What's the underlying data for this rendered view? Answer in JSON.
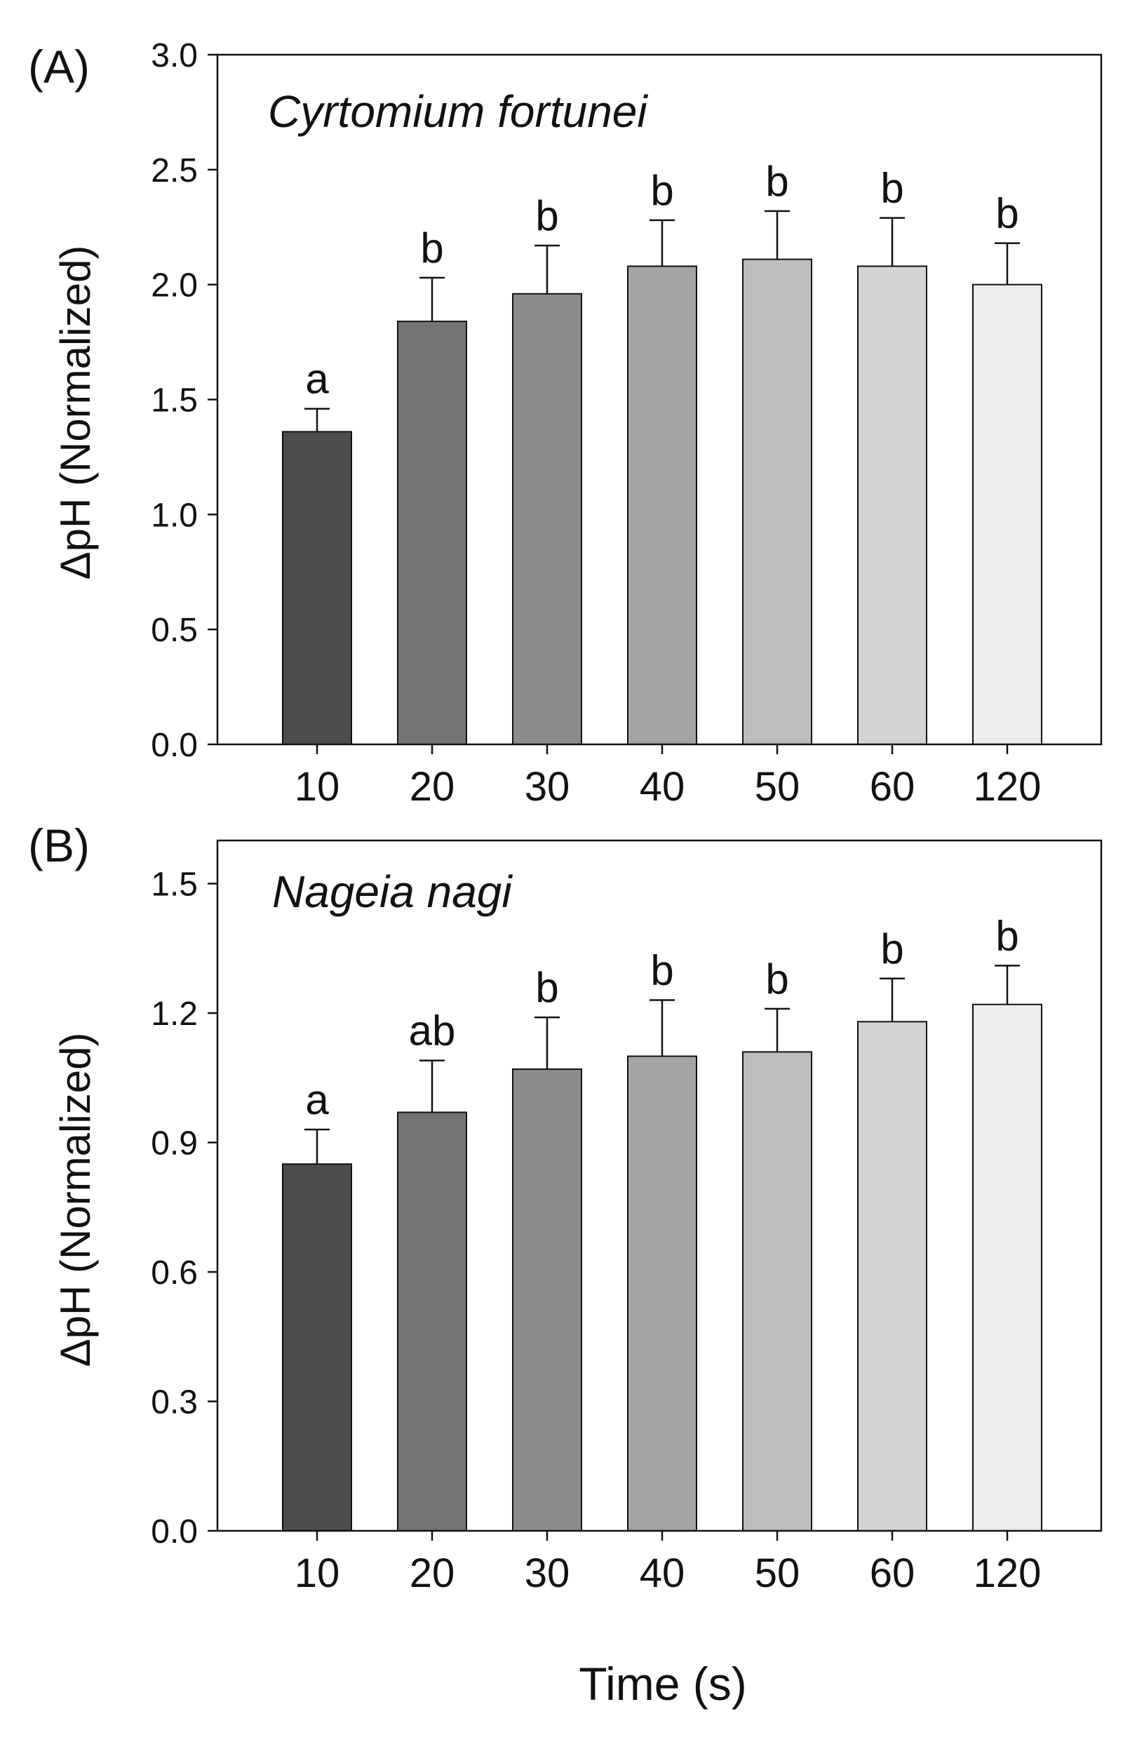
{
  "chart_data": [
    {
      "type": "bar",
      "panel_label": "(A)",
      "title": "Cyrtomium fortunei",
      "xlabel": "Time (s)",
      "ylabel": "ΔpH (Normalized)",
      "categories": [
        "10",
        "20",
        "30",
        "40",
        "50",
        "60",
        "120"
      ],
      "values": [
        1.36,
        1.84,
        1.96,
        2.08,
        2.11,
        2.08,
        2.0
      ],
      "errors": [
        0.1,
        0.19,
        0.21,
        0.2,
        0.21,
        0.21,
        0.18
      ],
      "significance_letters": [
        "a",
        "b",
        "b",
        "b",
        "b",
        "b",
        "b"
      ],
      "ylim": [
        0,
        3.0
      ],
      "yticks": [
        0,
        0.5,
        1.0,
        1.5,
        2.0,
        2.5,
        3.0
      ],
      "ytick_labels": [
        "0.0",
        "0.5",
        "1.0",
        "1.5",
        "2.0",
        "2.5",
        "3.0"
      ],
      "colors": [
        "#4d4d4d",
        "#727372",
        "#8c8c8c",
        "#a4a4a4",
        "#bdbdbd",
        "#d4d4d4",
        "#ececec"
      ]
    },
    {
      "type": "bar",
      "panel_label": "(B)",
      "title": "Nageia nagi",
      "xlabel": "Time (s)",
      "ylabel": "ΔpH (Normalized)",
      "categories": [
        "10",
        "20",
        "30",
        "40",
        "50",
        "60",
        "120"
      ],
      "values": [
        0.85,
        0.97,
        1.07,
        1.1,
        1.11,
        1.18,
        1.22
      ],
      "errors": [
        0.08,
        0.12,
        0.12,
        0.13,
        0.1,
        0.1,
        0.09
      ],
      "significance_letters": [
        "a",
        "ab",
        "b",
        "b",
        "b",
        "b",
        "b"
      ],
      "ylim": [
        0,
        1.6
      ],
      "yticks": [
        0,
        0.3,
        0.6,
        0.9,
        1.2,
        1.5
      ],
      "ytick_labels": [
        "0.0",
        "0.3",
        "0.6",
        "0.9",
        "1.2",
        "1.5"
      ],
      "colors": [
        "#4d4d4d",
        "#727372",
        "#8c8c8c",
        "#a4a4a4",
        "#bdbdbd",
        "#d4d4d4",
        "#ececec"
      ]
    }
  ],
  "shared_xlabel": "Time (s)"
}
